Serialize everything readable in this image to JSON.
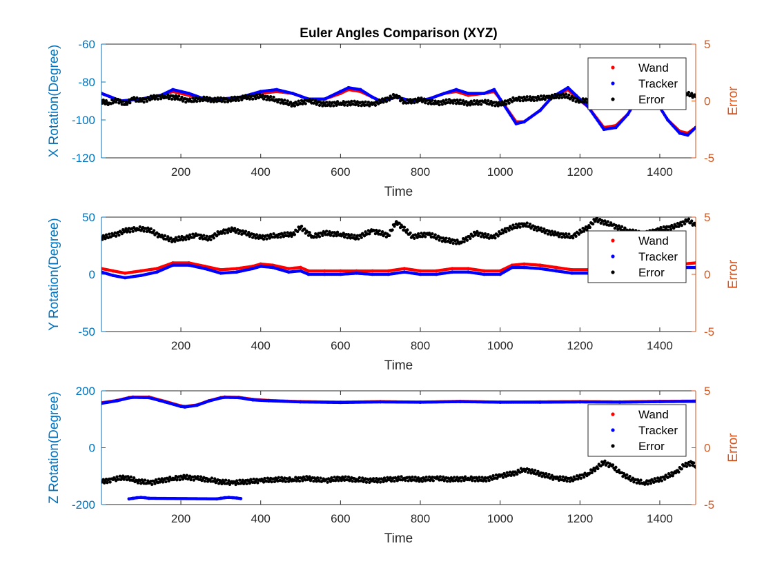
{
  "chart_data": [
    {
      "type": "scatter",
      "title": "Euler Angles Comparison (XYZ)",
      "xlabel": "Time",
      "ylabel": "X Rotation(Degree)",
      "ylabel_right": "Error",
      "xlim": [
        1,
        1490
      ],
      "ylim": [
        -120,
        -60
      ],
      "ylim_right": [
        -5,
        5
      ],
      "xticks": [
        "200",
        "400",
        "600",
        "800",
        "1000",
        "1200",
        "1400"
      ],
      "yticks": [
        "-120",
        "-100",
        "-80",
        "-60"
      ],
      "yticks_right": [
        "-5",
        "0",
        "5"
      ],
      "legend_position": "top-right",
      "series": [
        {
          "name": "Wand",
          "color": "#ff0000",
          "axis": "left",
          "x": [
            1,
            50,
            100,
            150,
            180,
            220,
            260,
            300,
            350,
            400,
            440,
            480,
            520,
            560,
            600,
            620,
            650,
            680,
            700,
            740,
            780,
            820,
            860,
            890,
            920,
            960,
            985,
            1000,
            1040,
            1060,
            1100,
            1130,
            1170,
            1190,
            1220,
            1260,
            1290,
            1320,
            1340,
            1360,
            1390,
            1420,
            1450,
            1470,
            1490
          ],
          "y": [
            -86,
            -90,
            -89,
            -87,
            -85,
            -87,
            -89,
            -89,
            -88,
            -86,
            -85,
            -86,
            -89,
            -89,
            -86,
            -84,
            -85,
            -88,
            -90,
            -88,
            -90,
            -89,
            -86,
            -85,
            -87,
            -86,
            -85,
            -89,
            -101,
            -101,
            -95,
            -88,
            -84,
            -88,
            -93,
            -104,
            -103,
            -97,
            -90,
            -86,
            -90,
            -100,
            -106,
            -107,
            -104
          ]
        },
        {
          "name": "Tracker",
          "color": "#0000ff",
          "axis": "left",
          "x": [
            1,
            50,
            100,
            150,
            180,
            220,
            260,
            300,
            350,
            400,
            440,
            480,
            520,
            560,
            600,
            620,
            650,
            680,
            700,
            740,
            780,
            820,
            860,
            890,
            920,
            960,
            985,
            1000,
            1040,
            1060,
            1100,
            1130,
            1170,
            1190,
            1220,
            1260,
            1290,
            1320,
            1340,
            1360,
            1390,
            1420,
            1450,
            1470,
            1490
          ],
          "y": [
            -86,
            -90,
            -89,
            -87,
            -84,
            -86,
            -89,
            -89,
            -88,
            -85,
            -84,
            -86,
            -89,
            -89,
            -85,
            -83,
            -84,
            -88,
            -90,
            -88,
            -90,
            -89,
            -86,
            -84,
            -86,
            -86,
            -84,
            -89,
            -102,
            -101,
            -95,
            -88,
            -83,
            -87,
            -93,
            -105,
            -104,
            -97,
            -90,
            -86,
            -90,
            -100,
            -107,
            -108,
            -104
          ]
        },
        {
          "name": "Error",
          "color": "#000000",
          "axis": "right",
          "x": [
            1,
            20,
            40,
            60,
            80,
            100,
            130,
            160,
            190,
            220,
            250,
            280,
            320,
            360,
            400,
            440,
            480,
            520,
            560,
            600,
            640,
            680,
            720,
            740,
            760,
            800,
            840,
            880,
            920,
            960,
            1000,
            1040,
            1080,
            1120,
            1160,
            1200,
            1240,
            1280,
            1320,
            1360,
            1400,
            1440,
            1470,
            1490
          ],
          "y": [
            0.0,
            -0.2,
            0.1,
            -0.3,
            0.2,
            0.0,
            0.3,
            0.4,
            0.3,
            0.0,
            0.2,
            0.1,
            0.1,
            0.3,
            0.4,
            0.1,
            -0.3,
            0.0,
            -0.3,
            -0.2,
            -0.2,
            -0.3,
            0.2,
            0.5,
            -0.1,
            0.1,
            -0.2,
            0.0,
            -0.2,
            -0.1,
            -0.3,
            0.2,
            0.2,
            0.3,
            0.5,
            0.0,
            0.1,
            0.2,
            0.1,
            0.2,
            0.3,
            0.2,
            0.6,
            0.4
          ]
        }
      ]
    },
    {
      "type": "scatter",
      "xlabel": "Time",
      "ylabel": "Y Rotation(Degree)",
      "ylabel_right": "Error",
      "xlim": [
        1,
        1490
      ],
      "ylim": [
        -50,
        50
      ],
      "ylim_right": [
        -5,
        5
      ],
      "xticks": [
        "200",
        "400",
        "600",
        "800",
        "1000",
        "1200",
        "1400"
      ],
      "yticks": [
        "-50",
        "0",
        "50"
      ],
      "yticks_right": [
        "-5",
        "0",
        "5"
      ],
      "legend_position": "right",
      "series": [
        {
          "name": "Wand",
          "color": "#ff0000",
          "axis": "left",
          "x": [
            1,
            30,
            60,
            100,
            140,
            180,
            220,
            260,
            300,
            340,
            380,
            400,
            430,
            470,
            500,
            520,
            560,
            600,
            640,
            680,
            720,
            760,
            800,
            840,
            880,
            920,
            960,
            1000,
            1030,
            1060,
            1100,
            1140,
            1180,
            1220,
            1260,
            1300,
            1340,
            1380,
            1420,
            1460,
            1490
          ],
          "y": [
            5,
            3,
            1,
            3,
            5,
            10,
            10,
            7,
            4,
            5,
            7,
            9,
            8,
            5,
            6,
            3,
            3,
            3,
            3,
            3,
            3,
            5,
            3,
            3,
            5,
            5,
            3,
            3,
            8,
            9,
            8,
            6,
            4,
            4,
            5,
            6,
            7,
            8,
            8,
            9,
            10
          ]
        },
        {
          "name": "Tracker",
          "color": "#0000ff",
          "axis": "left",
          "x": [
            1,
            30,
            60,
            100,
            140,
            180,
            220,
            260,
            300,
            340,
            380,
            400,
            430,
            470,
            500,
            520,
            560,
            600,
            640,
            680,
            720,
            760,
            800,
            840,
            880,
            920,
            960,
            1000,
            1030,
            1060,
            1100,
            1140,
            1180,
            1220,
            1260,
            1300,
            1340,
            1380,
            1420,
            1460,
            1490
          ],
          "y": [
            2,
            -1,
            -3,
            -1,
            2,
            8,
            8,
            5,
            1,
            2,
            5,
            7,
            6,
            2,
            3,
            0,
            0,
            0,
            1,
            0,
            0,
            2,
            0,
            0,
            2,
            2,
            0,
            0,
            6,
            6,
            5,
            3,
            1,
            1,
            2,
            3,
            4,
            5,
            5,
            6,
            6
          ]
        },
        {
          "name": "Error",
          "color": "#000000",
          "axis": "right",
          "x": [
            1,
            30,
            60,
            90,
            120,
            150,
            180,
            210,
            240,
            270,
            300,
            330,
            360,
            400,
            440,
            480,
            500,
            530,
            560,
            600,
            640,
            680,
            720,
            740,
            780,
            820,
            860,
            900,
            940,
            980,
            1020,
            1060,
            1100,
            1140,
            1180,
            1220,
            1240,
            1280,
            1320,
            1360,
            1400,
            1440,
            1470,
            1490
          ],
          "y": [
            3.2,
            3.4,
            3.8,
            4.0,
            3.9,
            3.3,
            3.0,
            3.2,
            3.4,
            3.1,
            3.7,
            3.9,
            3.6,
            3.2,
            3.4,
            3.5,
            4.1,
            3.3,
            3.6,
            3.5,
            3.2,
            3.8,
            3.4,
            4.6,
            3.3,
            3.5,
            3.0,
            2.8,
            3.6,
            3.2,
            4.0,
            4.4,
            3.9,
            3.5,
            3.3,
            4.1,
            4.8,
            4.3,
            3.8,
            3.5,
            3.9,
            4.2,
            4.7,
            4.3
          ]
        }
      ]
    },
    {
      "type": "scatter",
      "xlabel": "Time",
      "ylabel": "Z Rotation(Degree)",
      "ylabel_right": "Error",
      "xlim": [
        1,
        1490
      ],
      "ylim": [
        -200,
        200
      ],
      "ylim_right": [
        -5,
        5
      ],
      "xticks": [
        "200",
        "400",
        "600",
        "800",
        "1000",
        "1200",
        "1400"
      ],
      "yticks": [
        "-200",
        "0",
        "200"
      ],
      "yticks_right": [
        "-5",
        "0",
        "5"
      ],
      "legend_position": "right",
      "series": [
        {
          "name": "Wand",
          "color": "#ff0000",
          "axis": "left",
          "x": [
            1,
            40,
            70,
            80,
            120,
            160,
            200,
            210,
            240,
            270,
            300,
            310,
            345,
            380,
            420,
            500,
            600,
            700,
            800,
            900,
            1000,
            1100,
            1200,
            1300,
            1400,
            1490
          ],
          "y": [
            158,
            166,
            176,
            178,
            178,
            163,
            147,
            145,
            150,
            165,
            176,
            178,
            177,
            170,
            166,
            162,
            160,
            162,
            160,
            163,
            160,
            161,
            162,
            161,
            163,
            164
          ]
        },
        {
          "name": "Tracker",
          "color": "#0000ff",
          "axis": "left",
          "x": [
            1,
            40,
            70,
            80,
            120,
            160,
            200,
            210,
            240,
            270,
            300,
            310,
            345,
            380,
            420,
            500,
            600,
            700,
            800,
            900,
            1000,
            1100,
            1200,
            1300,
            1400,
            1490
          ],
          "y": [
            156,
            165,
            175,
            177,
            176,
            161,
            145,
            143,
            149,
            164,
            175,
            177,
            176,
            168,
            165,
            161,
            159,
            161,
            160,
            162,
            160,
            160,
            161,
            160,
            162,
            163
          ]
        },
        {
          "name": "Tracker",
          "color": "#0000ff",
          "axis": "left",
          "x": [
            70,
            80,
            90,
            100,
            110,
            120,
            290,
            300,
            310,
            320,
            330,
            340,
            350
          ],
          "y": [
            -180,
            -178,
            -176,
            -175,
            -176,
            -178,
            -180,
            -178,
            -176,
            -175,
            -176,
            -177,
            -179
          ]
        },
        {
          "name": "Error",
          "color": "#000000",
          "axis": "right",
          "x": [
            1,
            30,
            60,
            90,
            120,
            150,
            180,
            210,
            240,
            270,
            300,
            330,
            360,
            400,
            440,
            480,
            520,
            560,
            600,
            640,
            680,
            720,
            760,
            800,
            840,
            880,
            920,
            960,
            1000,
            1040,
            1060,
            1100,
            1140,
            1180,
            1220,
            1240,
            1260,
            1280,
            1300,
            1330,
            1360,
            1400,
            1440,
            1460,
            1480,
            1490
          ],
          "y": [
            -3.0,
            -2.8,
            -2.6,
            -2.9,
            -3.1,
            -2.9,
            -2.7,
            -2.6,
            -2.7,
            -2.8,
            -3.0,
            -3.1,
            -3.0,
            -2.9,
            -2.8,
            -2.8,
            -2.7,
            -2.9,
            -2.7,
            -2.8,
            -2.9,
            -2.8,
            -2.7,
            -2.8,
            -2.7,
            -2.8,
            -2.7,
            -2.8,
            -2.5,
            -2.2,
            -1.9,
            -2.3,
            -2.7,
            -2.8,
            -2.3,
            -1.8,
            -1.3,
            -1.6,
            -2.2,
            -2.8,
            -3.1,
            -2.8,
            -2.2,
            -1.6,
            -1.3,
            -1.7
          ]
        }
      ]
    }
  ]
}
